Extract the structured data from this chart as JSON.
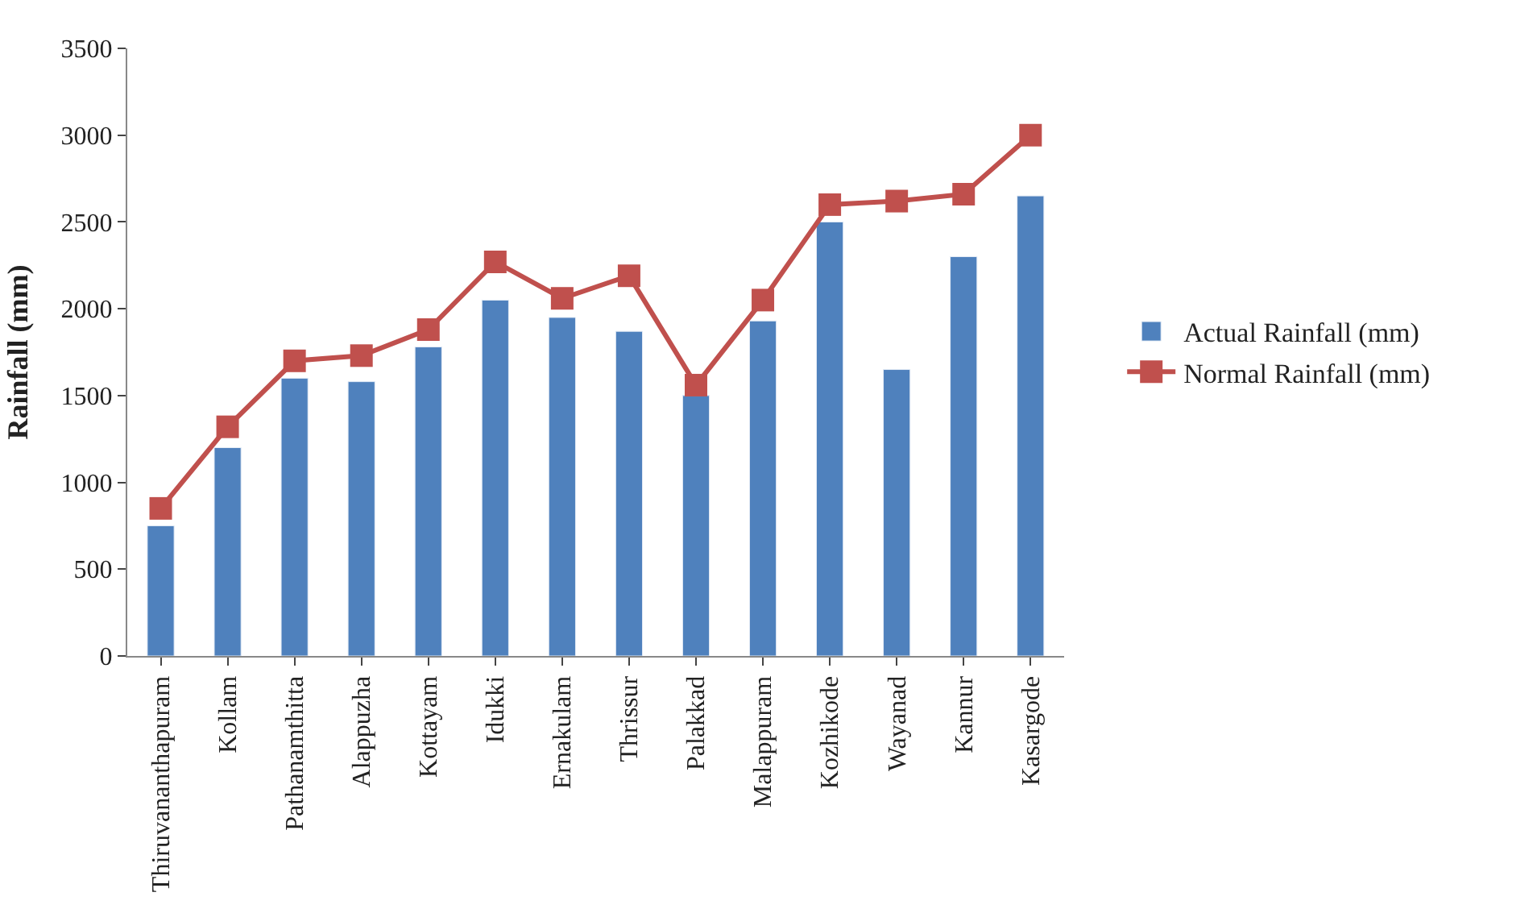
{
  "chart_data": {
    "type": "bar",
    "ylabel": "Rainfall (mm)",
    "categories": [
      "Thiruvananthapuram",
      "Kollam",
      "Pathanamthitta",
      "Alappuzha",
      "Kottayam",
      "Idukki",
      "Ernakulam",
      "Thrissur",
      "Palakkad",
      "Malappuram",
      "Kozhikode",
      "Wayanad",
      "Kannur",
      "Kasargode"
    ],
    "series": [
      {
        "name": "Actual Rainfall (mm)",
        "color": "#4f81bd",
        "values": [
          750,
          1200,
          1600,
          1580,
          1780,
          2050,
          1950,
          1870,
          1500,
          1930,
          2500,
          1650,
          2300,
          2650
        ]
      },
      {
        "name": "Normal Rainfall (mm)",
        "type": "line",
        "color": "#c0504d",
        "marker": "square",
        "values": [
          850,
          1320,
          1700,
          1730,
          1880,
          2270,
          2060,
          2190,
          1560,
          2050,
          2600,
          2620,
          2660,
          3000
        ]
      }
    ],
    "ylim": [
      0,
      3500
    ],
    "yticks": [
      0,
      500,
      1000,
      1500,
      2000,
      2500,
      3000,
      3500
    ],
    "legend": "right"
  }
}
